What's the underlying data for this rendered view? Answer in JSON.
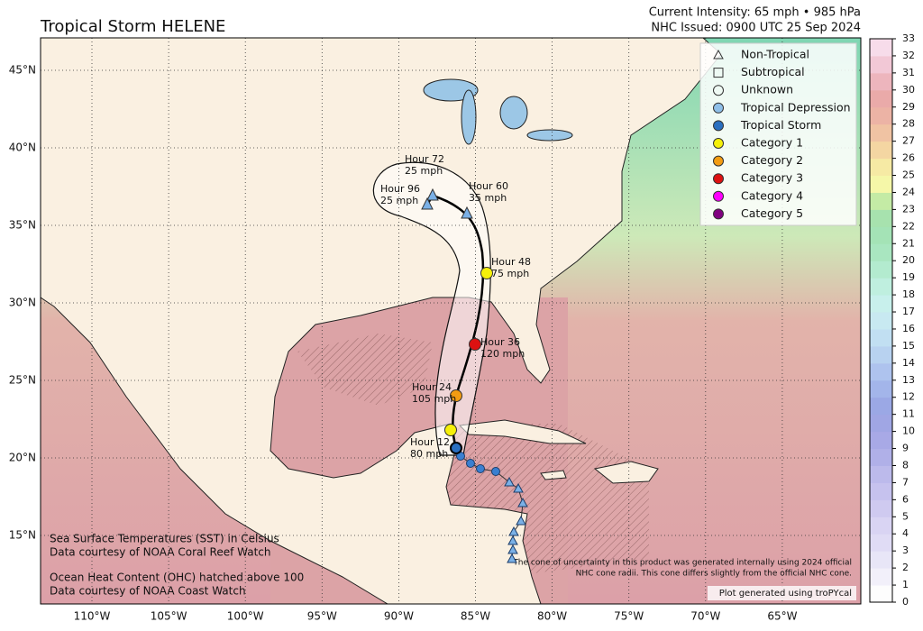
{
  "header": {
    "title": "Tropical Storm HELENE",
    "intensity": "Current Intensity: 65 mph • 985 hPa",
    "issued": "NHC Issued: 0900 UTC 25 Sep 2024"
  },
  "legend": [
    "Non-Tropical",
    "Subtropical",
    "Unknown",
    "Tropical Depression",
    "Tropical Storm",
    "Category 1",
    "Category 2",
    "Category 3",
    "Category 4",
    "Category 5"
  ],
  "longitude_labels": [
    "110°W",
    "105°W",
    "100°W",
    "95°W",
    "90°W",
    "85°W",
    "80°W",
    "75°W",
    "70°W",
    "65°W"
  ],
  "latitude_labels": [
    "45°N",
    "40°N",
    "35°N",
    "30°N",
    "25°N",
    "20°N",
    "15°N"
  ],
  "forecast_labels": [
    {
      "hour": "Hour 12",
      "wind": "80 mph"
    },
    {
      "hour": "Hour 24",
      "wind": "105 mph"
    },
    {
      "hour": "Hour 36",
      "wind": "120 mph"
    },
    {
      "hour": "Hour 48",
      "wind": "75 mph"
    },
    {
      "hour": "Hour 60",
      "wind": "35 mph"
    },
    {
      "hour": "Hour 72",
      "wind": "25 mph"
    },
    {
      "hour": "Hour 96",
      "wind": "25 mph"
    }
  ],
  "notes": {
    "sst": "Sea Surface Temperatures (SST) in Celsius",
    "sst_source": "Data courtesy of NOAA Coral Reef Watch",
    "ohc": "Ocean Heat Content (OHC) hatched above 100",
    "ohc_source": "Data courtesy of NOAA Coast Watch",
    "cone_1": "The cone of uncertainty in this product was generated internally using 2024 official",
    "cone_2": "NHC cone radii. This cone differs slightly from the official NHC cone.",
    "credit": "Plot generated using troPYcal"
  },
  "colorbar": {
    "ticks": [
      0,
      1,
      2,
      3,
      4,
      5,
      6,
      7,
      8,
      9,
      10,
      11,
      12,
      13,
      14,
      15,
      16,
      17,
      18,
      19,
      20,
      21,
      22,
      23,
      24,
      25,
      26,
      27,
      28,
      29,
      30,
      31,
      32,
      33
    ]
  }
}
